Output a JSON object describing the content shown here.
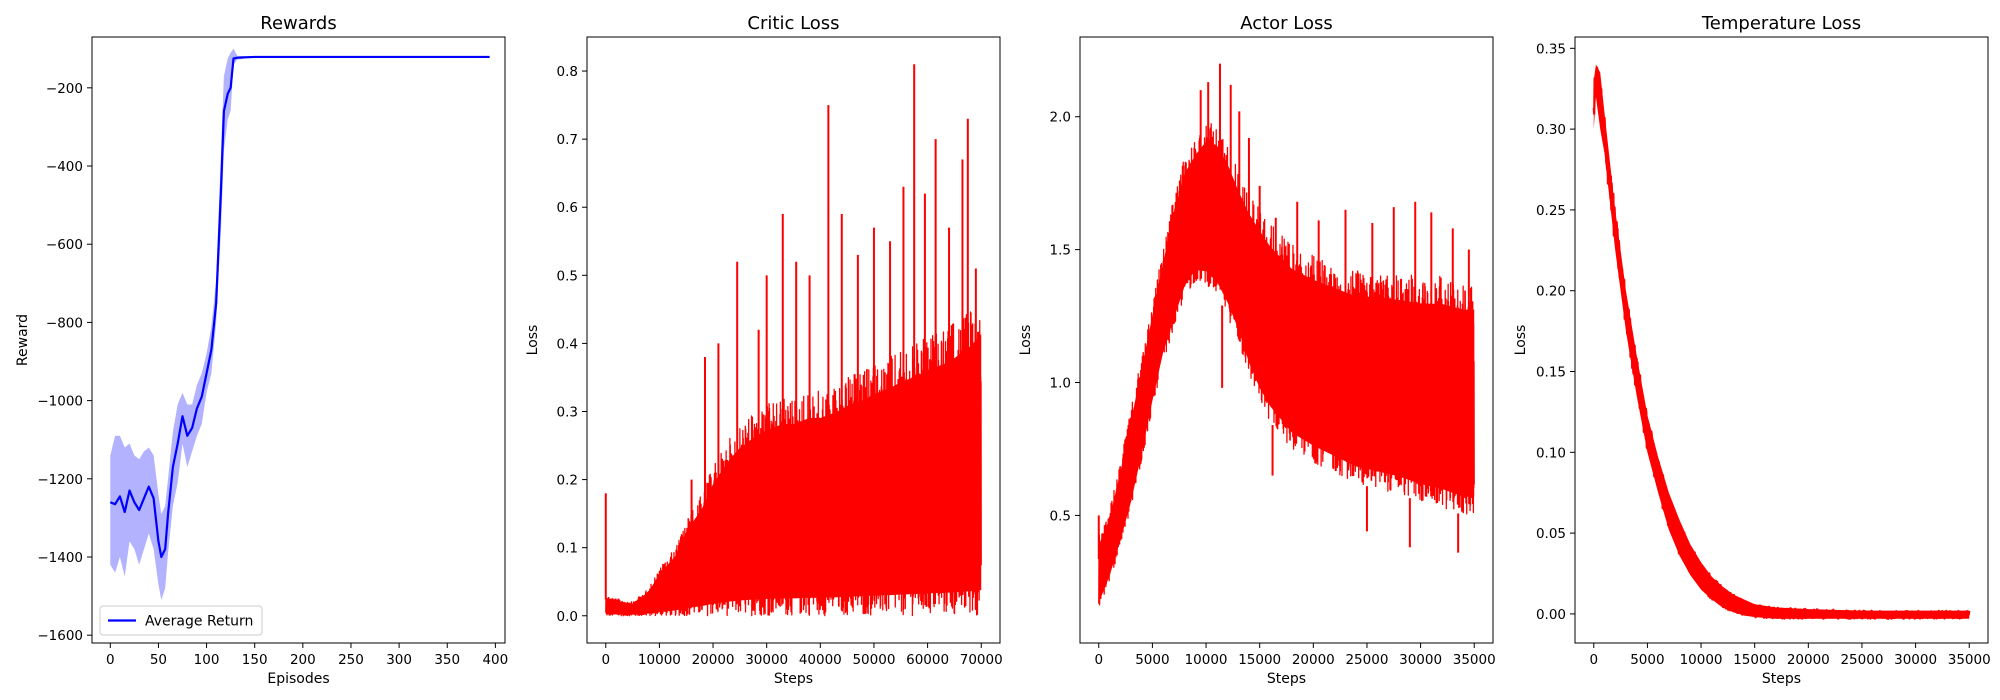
{
  "chart_data": [
    {
      "type": "line",
      "title": "Rewards",
      "xlabel": "Episodes",
      "ylabel": "Reward",
      "xlim": [
        -19,
        410
      ],
      "ylim": [
        -1620,
        -70
      ],
      "xticks": [
        0,
        50,
        100,
        150,
        200,
        250,
        300,
        350,
        400
      ],
      "yticks": [
        -1600,
        -1400,
        -1200,
        -1000,
        -800,
        -600,
        -400,
        -200
      ],
      "legend": {
        "position": "lower-left",
        "entries": [
          "Average Return"
        ]
      },
      "line_color": "#0000ff",
      "band_color": "#0000ff",
      "series": [
        {
          "name": "Average Return",
          "x": [
            0,
            5,
            10,
            15,
            20,
            25,
            30,
            35,
            40,
            45,
            50,
            53,
            57,
            60,
            65,
            70,
            75,
            80,
            85,
            90,
            95,
            100,
            105,
            110,
            115,
            118,
            122,
            125,
            128,
            132,
            140,
            150,
            200,
            250,
            300,
            350,
            394
          ],
          "y": [
            -1260,
            -1265,
            -1245,
            -1285,
            -1230,
            -1260,
            -1280,
            -1250,
            -1220,
            -1250,
            -1360,
            -1400,
            -1380,
            -1290,
            -1170,
            -1110,
            -1040,
            -1090,
            -1070,
            -1020,
            -990,
            -930,
            -870,
            -750,
            -460,
            -260,
            -215,
            -200,
            -125,
            -123,
            -122,
            -121,
            -121,
            -121,
            -121,
            -121,
            -121
          ],
          "band_lower": [
            -1420,
            -1440,
            -1400,
            -1450,
            -1360,
            -1380,
            -1420,
            -1380,
            -1340,
            -1380,
            -1470,
            -1510,
            -1480,
            -1390,
            -1270,
            -1210,
            -1110,
            -1170,
            -1130,
            -1090,
            -1060,
            -980,
            -930,
            -800,
            -560,
            -360,
            -280,
            -260,
            -140,
            -128,
            -125,
            -123,
            -123,
            -123,
            -123,
            -123,
            -123
          ],
          "band_upper": [
            -1140,
            -1090,
            -1090,
            -1120,
            -1110,
            -1140,
            -1150,
            -1130,
            -1120,
            -1140,
            -1240,
            -1290,
            -1270,
            -1200,
            -1080,
            -1010,
            -980,
            -1010,
            -1010,
            -960,
            -930,
            -880,
            -810,
            -690,
            -360,
            -170,
            -125,
            -110,
            -100,
            -118,
            -119,
            -119,
            -119,
            -119,
            -119,
            -119,
            -119
          ]
        }
      ]
    },
    {
      "type": "line",
      "title": "Critic Loss",
      "xlabel": "Steps",
      "ylabel": "Loss",
      "xlim": [
        -3500,
        73500
      ],
      "ylim": [
        -0.04,
        0.85
      ],
      "xticks": [
        0,
        10000,
        20000,
        30000,
        40000,
        50000,
        60000,
        70000
      ],
      "yticks": [
        0.0,
        0.1,
        0.2,
        0.3,
        0.4,
        0.5,
        0.6,
        0.7,
        0.8
      ],
      "line_color": "#ff0000",
      "series": [
        {
          "x": [
            0,
            2000,
            5000,
            8000,
            10000,
            13000,
            15000,
            18000,
            20000,
            23000,
            25000,
            28000,
            30000,
            33000,
            35000,
            38000,
            40000,
            43000,
            45000,
            48000,
            50000,
            53000,
            55000,
            58000,
            60000,
            63000,
            65000,
            68000,
            70000
          ],
          "low": [
            0,
            0,
            0,
            0,
            0,
            0,
            0,
            0,
            0,
            0,
            0,
            0,
            0,
            0,
            0,
            0,
            0,
            0,
            0,
            0,
            0,
            0,
            0,
            0,
            0,
            0,
            0,
            0,
            0
          ],
          "high": [
            0.03,
            0.025,
            0.02,
            0.04,
            0.07,
            0.1,
            0.14,
            0.18,
            0.22,
            0.26,
            0.28,
            0.3,
            0.31,
            0.32,
            0.32,
            0.33,
            0.33,
            0.34,
            0.35,
            0.36,
            0.37,
            0.38,
            0.39,
            0.4,
            0.41,
            0.42,
            0.43,
            0.45,
            0.47
          ],
          "spikes": [
            [
              0,
              0.18
            ],
            [
              16000,
              0.2
            ],
            [
              18500,
              0.38
            ],
            [
              21000,
              0.4
            ],
            [
              24500,
              0.52
            ],
            [
              28500,
              0.42
            ],
            [
              30000,
              0.5
            ],
            [
              33000,
              0.59
            ],
            [
              35500,
              0.52
            ],
            [
              38000,
              0.5
            ],
            [
              41500,
              0.75
            ],
            [
              44000,
              0.59
            ],
            [
              47000,
              0.53
            ],
            [
              50000,
              0.57
            ],
            [
              53000,
              0.55
            ],
            [
              55500,
              0.63
            ],
            [
              57500,
              0.81
            ],
            [
              59500,
              0.62
            ],
            [
              61500,
              0.7
            ],
            [
              64000,
              0.57
            ],
            [
              66500,
              0.67
            ],
            [
              67500,
              0.73
            ],
            [
              69000,
              0.51
            ]
          ]
        }
      ]
    },
    {
      "type": "line",
      "title": "Actor Loss",
      "xlabel": "Steps",
      "ylabel": "Loss",
      "xlim": [
        -1750,
        36750
      ],
      "ylim": [
        0.02,
        2.3
      ],
      "xticks": [
        0,
        5000,
        10000,
        15000,
        20000,
        25000,
        30000,
        35000
      ],
      "yticks": [
        0.5,
        1.0,
        1.5,
        2.0
      ],
      "line_color": "#ff0000",
      "series": [
        {
          "x": [
            0,
            1000,
            2000,
            3000,
            4000,
            5000,
            6000,
            7000,
            8000,
            9000,
            10000,
            11000,
            12000,
            13000,
            14000,
            15000,
            16000,
            17000,
            18000,
            20000,
            22000,
            24000,
            26000,
            28000,
            30000,
            32000,
            34000,
            35000
          ],
          "low": [
            0.15,
            0.25,
            0.38,
            0.52,
            0.7,
            0.9,
            1.08,
            1.2,
            1.32,
            1.38,
            1.37,
            1.33,
            1.25,
            1.15,
            1.02,
            0.92,
            0.85,
            0.8,
            0.75,
            0.7,
            0.66,
            0.62,
            0.6,
            0.58,
            0.55,
            0.53,
            0.5,
            0.5
          ],
          "high": [
            0.42,
            0.52,
            0.7,
            0.9,
            1.1,
            1.3,
            1.5,
            1.7,
            1.85,
            1.92,
            1.98,
            1.97,
            1.9,
            1.8,
            1.72,
            1.66,
            1.6,
            1.56,
            1.52,
            1.48,
            1.45,
            1.42,
            1.42,
            1.41,
            1.4,
            1.4,
            1.38,
            1.38
          ],
          "spikes": [
            [
              0,
              0.5
            ],
            [
              9500,
              2.1
            ],
            [
              10200,
              2.13
            ],
            [
              11300,
              2.2
            ],
            [
              12300,
              2.12
            ],
            [
              13100,
              2.02
            ],
            [
              14000,
              1.92
            ],
            [
              15000,
              1.74
            ],
            [
              16500,
              1.62
            ],
            [
              18500,
              1.68
            ],
            [
              20500,
              1.61
            ],
            [
              23000,
              1.65
            ],
            [
              25500,
              1.6
            ],
            [
              27500,
              1.66
            ],
            [
              29500,
              1.68
            ],
            [
              31000,
              1.64
            ],
            [
              33000,
              1.58
            ],
            [
              34500,
              1.5
            ],
            [
              11500,
              0.98
            ],
            [
              16200,
              0.65
            ],
            [
              25000,
              0.44
            ],
            [
              29000,
              0.38
            ],
            [
              33500,
              0.36
            ]
          ]
        }
      ]
    },
    {
      "type": "line",
      "title": "Temperature Loss",
      "xlabel": "Steps",
      "ylabel": "Loss",
      "xlim": [
        -1750,
        36750
      ],
      "ylim": [
        -0.018,
        0.357
      ],
      "xticks": [
        0,
        5000,
        10000,
        15000,
        20000,
        25000,
        30000,
        35000
      ],
      "yticks": [
        0.0,
        0.05,
        0.1,
        0.15,
        0.2,
        0.25,
        0.3,
        0.35
      ],
      "line_color": "#ff0000",
      "series": [
        {
          "x": [
            0,
            200,
            600,
            1000,
            2000,
            3000,
            4000,
            5000,
            6000,
            7000,
            8000,
            9000,
            10000,
            11000,
            12000,
            13000,
            14000,
            15000,
            17000,
            20000,
            25000,
            30000,
            35000
          ],
          "low": [
            0.3,
            0.32,
            0.3,
            0.285,
            0.225,
            0.175,
            0.135,
            0.1,
            0.075,
            0.052,
            0.036,
            0.024,
            0.015,
            0.009,
            0.004,
            0.001,
            -0.001,
            -0.002,
            -0.003,
            -0.003,
            -0.003,
            -0.003,
            -0.003
          ],
          "high": [
            0.33,
            0.34,
            0.335,
            0.31,
            0.25,
            0.2,
            0.16,
            0.123,
            0.097,
            0.075,
            0.058,
            0.043,
            0.032,
            0.023,
            0.017,
            0.012,
            0.009,
            0.006,
            0.004,
            0.003,
            0.002,
            0.002,
            0.002
          ],
          "spikes": []
        }
      ]
    }
  ]
}
